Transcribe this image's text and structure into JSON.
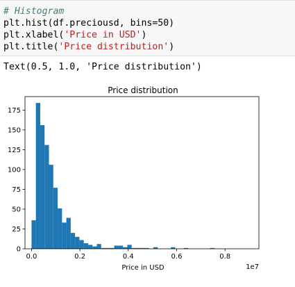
{
  "code_cell": {
    "line1": "# Histogram",
    "line2": "plt.hist(df.preciousd, bins=50)",
    "line3_prefix": "plt.xlabel(",
    "line3_str": "'Price in USD'",
    "line3_suffix": ")",
    "line4_prefix": "plt.title(",
    "line4_str": "'Price distribution'",
    "line4_suffix": ")"
  },
  "output": {
    "text": "Text(0.5, 1.0, 'Price distribution')"
  },
  "colors": {
    "bar": "#1f77b4"
  },
  "chart_data": {
    "type": "bar",
    "title": "Price distribution",
    "xlabel": "Price in USD",
    "ylabel": "",
    "x_offset_label": "1e7",
    "xlim": [
      -0.027,
      0.94
    ],
    "ylim": [
      0,
      192
    ],
    "x_ticks": [
      0.0,
      0.2,
      0.4,
      0.6,
      0.8
    ],
    "x_tick_labels": [
      "0.0",
      "0.2",
      "0.4",
      "0.6",
      "0.8"
    ],
    "y_ticks": [
      0,
      25,
      50,
      75,
      100,
      125,
      150,
      175
    ],
    "y_tick_labels": [
      "0",
      "25",
      "50",
      "75",
      "100",
      "125",
      "150",
      "175"
    ],
    "bin_start": 0.0,
    "bin_width": 0.018,
    "values": [
      36,
      184,
      156,
      131,
      106,
      77,
      51,
      33,
      39,
      20,
      15,
      11,
      7,
      5,
      3,
      6,
      1,
      1,
      1,
      4,
      4,
      2,
      5,
      1,
      1,
      1,
      1,
      0,
      2,
      0,
      0,
      0,
      2,
      0,
      0,
      1,
      0,
      0,
      0,
      0,
      0,
      1,
      0,
      0,
      0,
      0,
      0,
      0,
      0,
      0
    ]
  }
}
